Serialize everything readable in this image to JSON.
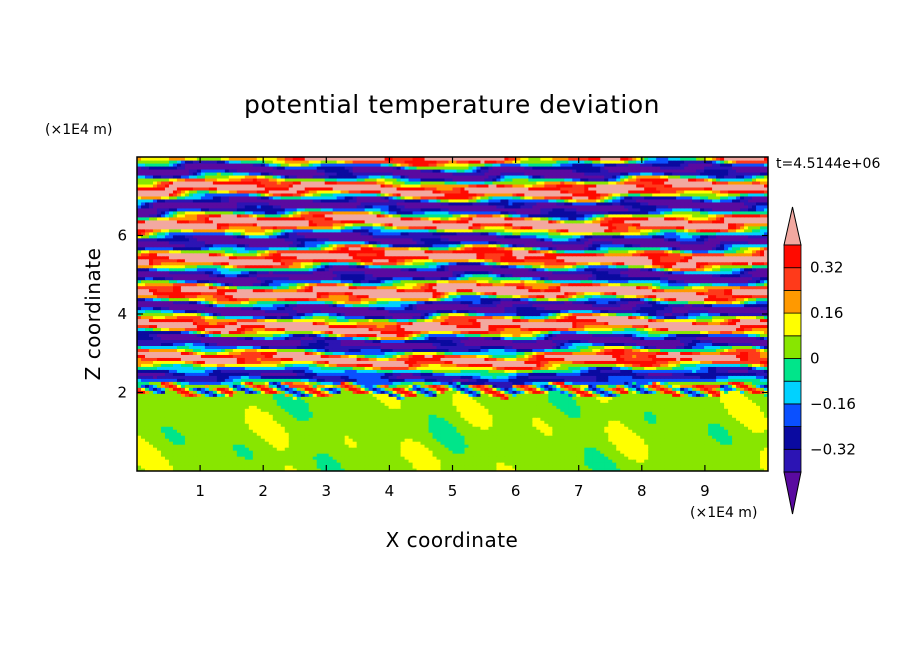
{
  "chart_data": {
    "type": "heatmap",
    "title": "potential temperature deviation",
    "xlabel": "X coordinate",
    "ylabel": "Z coordinate",
    "x_unit": "(×1E4 m)",
    "y_unit": "(×1E4 m)",
    "time_label": "t=4.5144e+06",
    "xlim": [
      0,
      10
    ],
    "ylim": [
      0,
      8
    ],
    "x_ticks": [
      1,
      2,
      3,
      4,
      5,
      6,
      7,
      8,
      9
    ],
    "y_ticks": [
      2,
      4,
      6
    ],
    "x_tick_labels": [
      "1",
      "2",
      "3",
      "4",
      "5",
      "6",
      "7",
      "8",
      "9"
    ],
    "y_tick_labels": [
      "2",
      "4",
      "6"
    ],
    "colorbar": {
      "levels": [
        -0.4,
        -0.32,
        -0.24,
        -0.16,
        -0.08,
        0,
        0.08,
        0.16,
        0.24,
        0.32,
        0.4
      ],
      "colors": [
        "#5a0aa0",
        "#2c14b4",
        "#0a0aa0",
        "#0a50ff",
        "#00d2ff",
        "#00e58a",
        "#88e600",
        "#ffff00",
        "#ff9900",
        "#ff3a1a",
        "#ff0a00",
        "#f2a8a0"
      ],
      "tick_labels": [
        "0.32",
        "0.16",
        "0",
        "-0.16",
        "-0.32"
      ],
      "tick_values": [
        0.32,
        0.16,
        0,
        -0.16,
        -0.32
      ],
      "extend": "both"
    },
    "field_description_bands": [
      {
        "z_range": [
          0,
          2.0
        ],
        "values": [
          0.04,
          0.06
        ]
      },
      {
        "z_range": [
          2.0,
          8.0
        ],
        "values": [
          -0.4,
          0.4
        ]
      }
    ]
  }
}
